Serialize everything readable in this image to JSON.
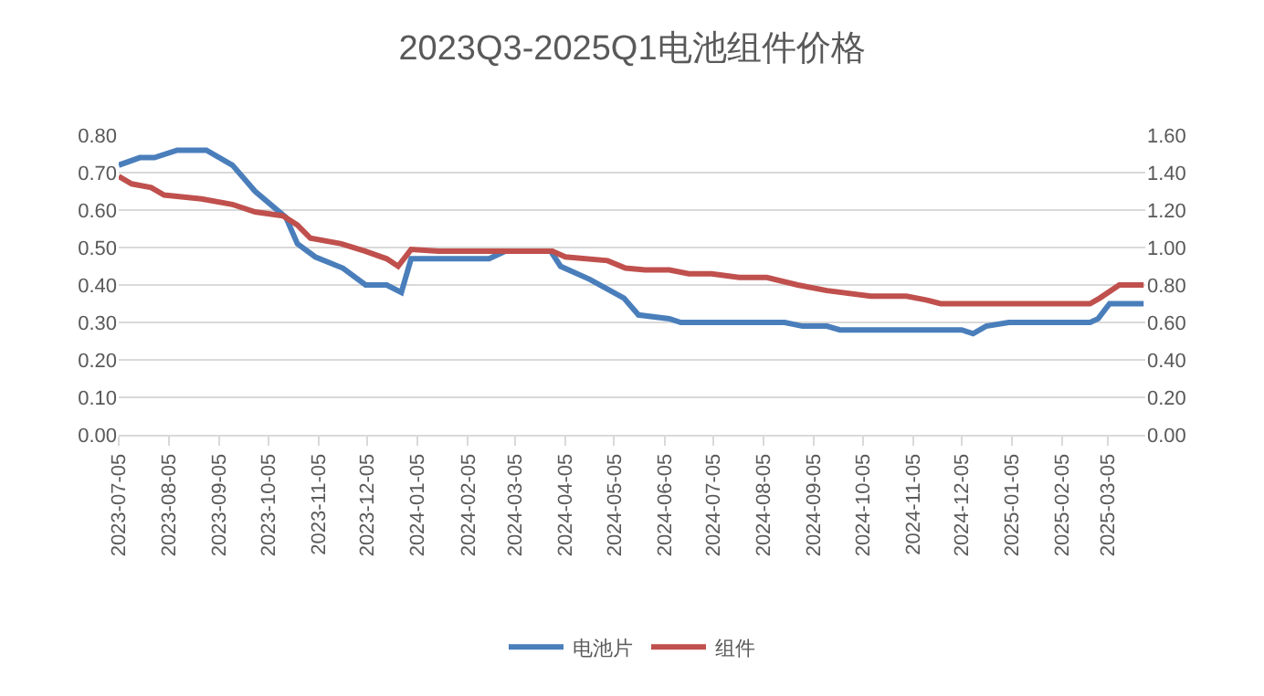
{
  "chart_data": {
    "type": "line",
    "title": "2023Q3-2025Q1电池组件价格",
    "xlim": [
      "2023-07-05",
      "2025-03-28"
    ],
    "xticks": [
      "2023-07-05",
      "2023-08-05",
      "2023-09-05",
      "2023-10-05",
      "2023-11-05",
      "2023-12-05",
      "2024-01-05",
      "2024-02-05",
      "2024-03-05",
      "2024-04-05",
      "2024-05-05",
      "2024-06-05",
      "2024-07-05",
      "2024-08-05",
      "2024-09-05",
      "2024-10-05",
      "2024-11-05",
      "2024-12-05",
      "2025-01-05",
      "2025-02-05",
      "2025-03-05"
    ],
    "ylim": [
      0,
      0.8
    ],
    "yticks": [
      {
        "value": 0,
        "label": "0.00"
      },
      {
        "value": 0.1,
        "label": "0.10"
      },
      {
        "value": 0.2,
        "label": "0.20"
      },
      {
        "value": 0.3,
        "label": "0.30"
      },
      {
        "value": 0.4,
        "label": "0.40"
      },
      {
        "value": 0.5,
        "label": "0.50"
      },
      {
        "value": 0.6,
        "label": "0.60"
      },
      {
        "value": 0.7,
        "label": "0.70"
      },
      {
        "value": 0.8,
        "label": "0.80"
      }
    ],
    "y2lim": [
      0,
      1.6
    ],
    "y2ticks": [
      {
        "value": 0,
        "label": "0.00"
      },
      {
        "value": 0.2,
        "label": "0.20"
      },
      {
        "value": 0.4,
        "label": "0.40"
      },
      {
        "value": 0.6,
        "label": "0.60"
      },
      {
        "value": 0.8,
        "label": "0.80"
      },
      {
        "value": 1.0,
        "label": "1.00"
      },
      {
        "value": 1.2,
        "label": "1.20"
      },
      {
        "value": 1.4,
        "label": "1.40"
      },
      {
        "value": 1.6,
        "label": "1.60"
      }
    ],
    "grid": "y",
    "legend": "bottom",
    "marker": "none",
    "line_style": "solid",
    "series": [
      {
        "name": "电池片",
        "color": "#4a7ebb",
        "x": [
          "2023-07-05",
          "2023-07-18",
          "2023-07-27",
          "2023-08-10",
          "2023-08-28",
          "2023-09-13",
          "2023-09-27",
          "2023-10-16",
          "2023-10-23",
          "2023-11-03",
          "2023-11-20",
          "2023-12-04",
          "2023-12-17",
          "2023-12-26",
          "2024-01-01",
          "2024-02-18",
          "2024-02-28",
          "2024-03-27",
          "2024-04-02",
          "2024-04-20",
          "2024-05-11",
          "2024-05-20",
          "2024-06-08",
          "2024-06-15",
          "2024-08-18",
          "2024-08-29",
          "2024-09-13",
          "2024-09-21",
          "2024-12-05",
          "2024-12-12",
          "2024-12-20",
          "2025-01-03",
          "2025-02-22",
          "2025-02-27",
          "2025-03-06",
          "2025-03-27"
        ],
        "values": [
          0.72,
          0.74,
          0.74,
          0.76,
          0.76,
          0.72,
          0.65,
          0.58,
          0.51,
          0.475,
          0.445,
          0.4,
          0.4,
          0.38,
          0.47,
          0.47,
          0.49,
          0.49,
          0.45,
          0.415,
          0.365,
          0.32,
          0.31,
          0.3,
          0.3,
          0.29,
          0.29,
          0.28,
          0.28,
          0.27,
          0.29,
          0.3,
          0.3,
          0.31,
          0.35,
          0.35
        ]
      },
      {
        "name": "组件",
        "color": "#c0504d",
        "axis": "y2",
        "x": [
          "2023-07-05",
          "2023-07-13",
          "2023-07-25",
          "2023-08-02",
          "2023-08-25",
          "2023-09-13",
          "2023-09-27",
          "2023-10-14",
          "2023-10-23",
          "2023-10-31",
          "2023-11-19",
          "2023-12-04",
          "2023-12-17",
          "2023-12-24",
          "2024-01-01",
          "2024-01-18",
          "2024-03-28",
          "2024-04-05",
          "2024-05-01",
          "2024-05-12",
          "2024-05-24",
          "2024-06-08",
          "2024-06-20",
          "2024-07-04",
          "2024-07-21",
          "2024-08-07",
          "2024-08-26",
          "2024-09-13",
          "2024-10-10",
          "2024-11-01",
          "2024-11-13",
          "2024-11-22",
          "2025-02-22",
          "2025-02-28",
          "2025-03-12",
          "2025-03-27"
        ],
        "values": [
          1.38,
          1.34,
          1.32,
          1.28,
          1.26,
          1.23,
          1.19,
          1.17,
          1.12,
          1.05,
          1.02,
          0.98,
          0.94,
          0.9,
          0.99,
          0.98,
          0.98,
          0.95,
          0.93,
          0.89,
          0.88,
          0.88,
          0.86,
          0.86,
          0.84,
          0.84,
          0.8,
          0.77,
          0.74,
          0.74,
          0.72,
          0.7,
          0.7,
          0.73,
          0.8,
          0.8
        ]
      }
    ]
  }
}
